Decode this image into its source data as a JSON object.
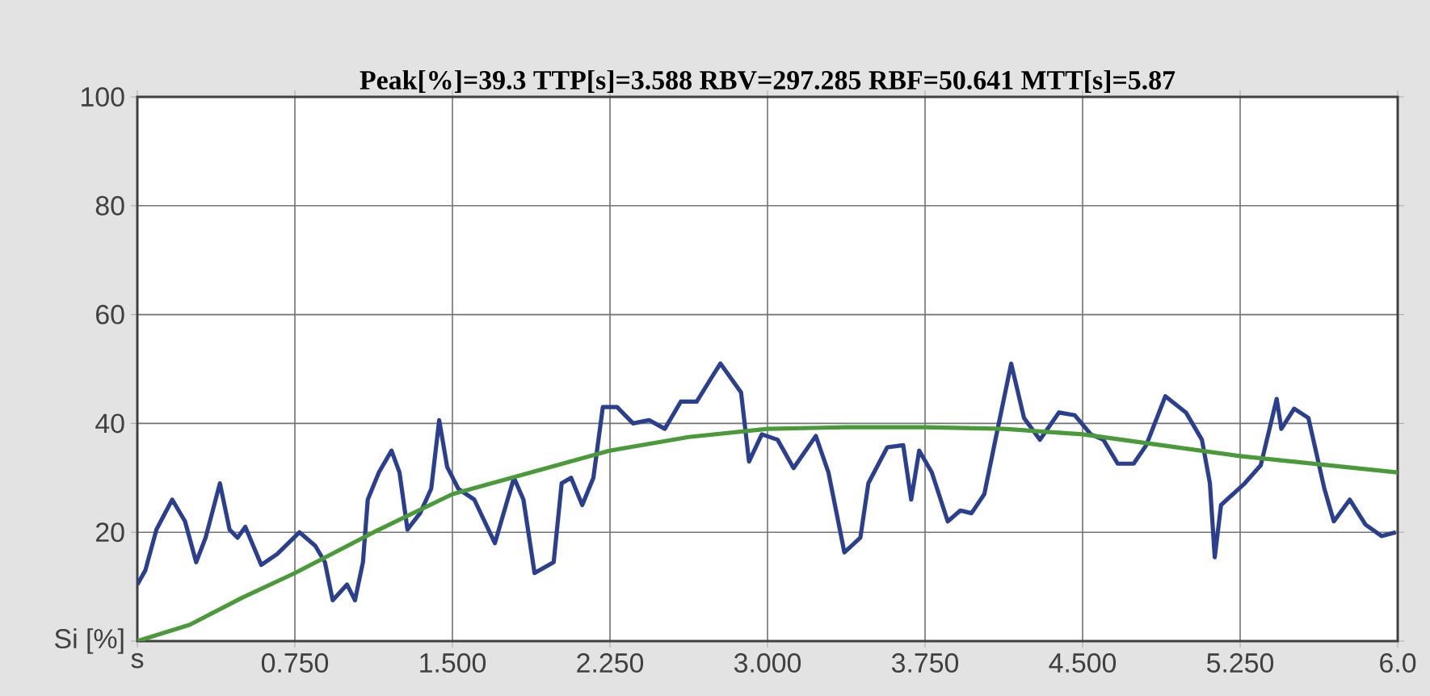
{
  "chart_data": {
    "type": "line",
    "title": "Peak[%]=39.3  TTP[s]=3.588  RBV=297.285  RBF=50.641  MTT[s]=5.87",
    "xlim": [
      0,
      6.0
    ],
    "ylim": [
      0,
      100
    ],
    "xticks": [
      {
        "value": 0,
        "label": "s"
      },
      {
        "value": 0.75,
        "label": "0.750"
      },
      {
        "value": 1.5,
        "label": "1.500"
      },
      {
        "value": 2.25,
        "label": "2.250"
      },
      {
        "value": 3.0,
        "label": "3.000"
      },
      {
        "value": 3.75,
        "label": "3.750"
      },
      {
        "value": 4.5,
        "label": "4.500"
      },
      {
        "value": 5.25,
        "label": "5.250"
      },
      {
        "value": 6.0,
        "label": "6.0"
      }
    ],
    "yticks": [
      {
        "value": 0,
        "label": "Si [%]"
      },
      20,
      40,
      60,
      80,
      100
    ],
    "grid": true,
    "marker": "none",
    "line_style": "solid",
    "series": [
      {
        "color": "#2b3f8f",
        "x": [
          0,
          0.038,
          0.091,
          0.166,
          0.227,
          0.28,
          0.325,
          0.393,
          0.439,
          0.477,
          0.514,
          0.59,
          0.666,
          0.772,
          0.847,
          0.893,
          0.93,
          0.998,
          1.036,
          1.074,
          1.097,
          1.15,
          1.21,
          1.248,
          1.286,
          1.346,
          1.399,
          1.437,
          1.475,
          1.528,
          1.604,
          1.702,
          1.755,
          1.793,
          1.838,
          1.891,
          1.982,
          2.02,
          2.065,
          2.118,
          2.171,
          2.216,
          2.284,
          2.36,
          2.436,
          2.511,
          2.587,
          2.663,
          2.738,
          2.776,
          2.874,
          2.912,
          2.973,
          3.048,
          3.124,
          3.23,
          3.29,
          3.366,
          3.442,
          3.48,
          3.57,
          3.646,
          3.684,
          3.722,
          3.782,
          3.858,
          3.918,
          3.971,
          4.032,
          4.085,
          4.16,
          4.221,
          4.297,
          4.387,
          4.463,
          4.539,
          4.599,
          4.667,
          4.743,
          4.803,
          4.894,
          4.992,
          5.068,
          5.106,
          5.129,
          5.159,
          5.272,
          5.348,
          5.424,
          5.446,
          5.507,
          5.575,
          5.651,
          5.696,
          5.772,
          5.847,
          5.923,
          5.991
        ],
        "values": [
          10.4,
          13,
          20.5,
          26,
          22,
          14.5,
          19,
          29,
          20.5,
          19,
          21,
          14,
          16,
          20,
          17.5,
          14.5,
          7.5,
          10.4,
          7.5,
          14.5,
          26,
          31,
          35,
          31,
          20.5,
          23.5,
          28,
          40.6,
          32,
          28,
          26,
          18,
          25,
          30,
          26,
          12.5,
          14.5,
          29,
          30,
          25,
          30,
          43,
          43,
          40,
          40.6,
          39,
          44,
          44,
          48.7,
          51,
          45.7,
          33,
          38,
          37,
          31.8,
          37.7,
          31,
          16.3,
          19,
          29,
          35.6,
          36,
          26,
          35,
          31,
          22,
          24,
          23.5,
          27,
          37,
          51,
          41,
          37,
          42,
          41.5,
          38,
          37,
          32.6,
          32.6,
          36,
          45,
          42,
          37,
          29,
          15.4,
          25,
          29,
          32.3,
          44.5,
          39,
          42.7,
          41,
          28,
          22,
          26,
          21.4,
          19.3,
          20
        ]
      },
      {
        "color": "#4a9a3a",
        "x": [
          0,
          0.25,
          0.5,
          0.75,
          1.125,
          1.5,
          1.875,
          2.25,
          2.625,
          3.0,
          3.375,
          3.75,
          4.125,
          4.5,
          4.875,
          5.25,
          5.625,
          6.0
        ],
        "values": [
          0,
          3,
          8,
          12.5,
          20,
          27,
          31,
          35,
          37.5,
          39,
          39.3,
          39.3,
          39,
          38,
          36,
          34,
          32.5,
          31
        ]
      }
    ]
  }
}
